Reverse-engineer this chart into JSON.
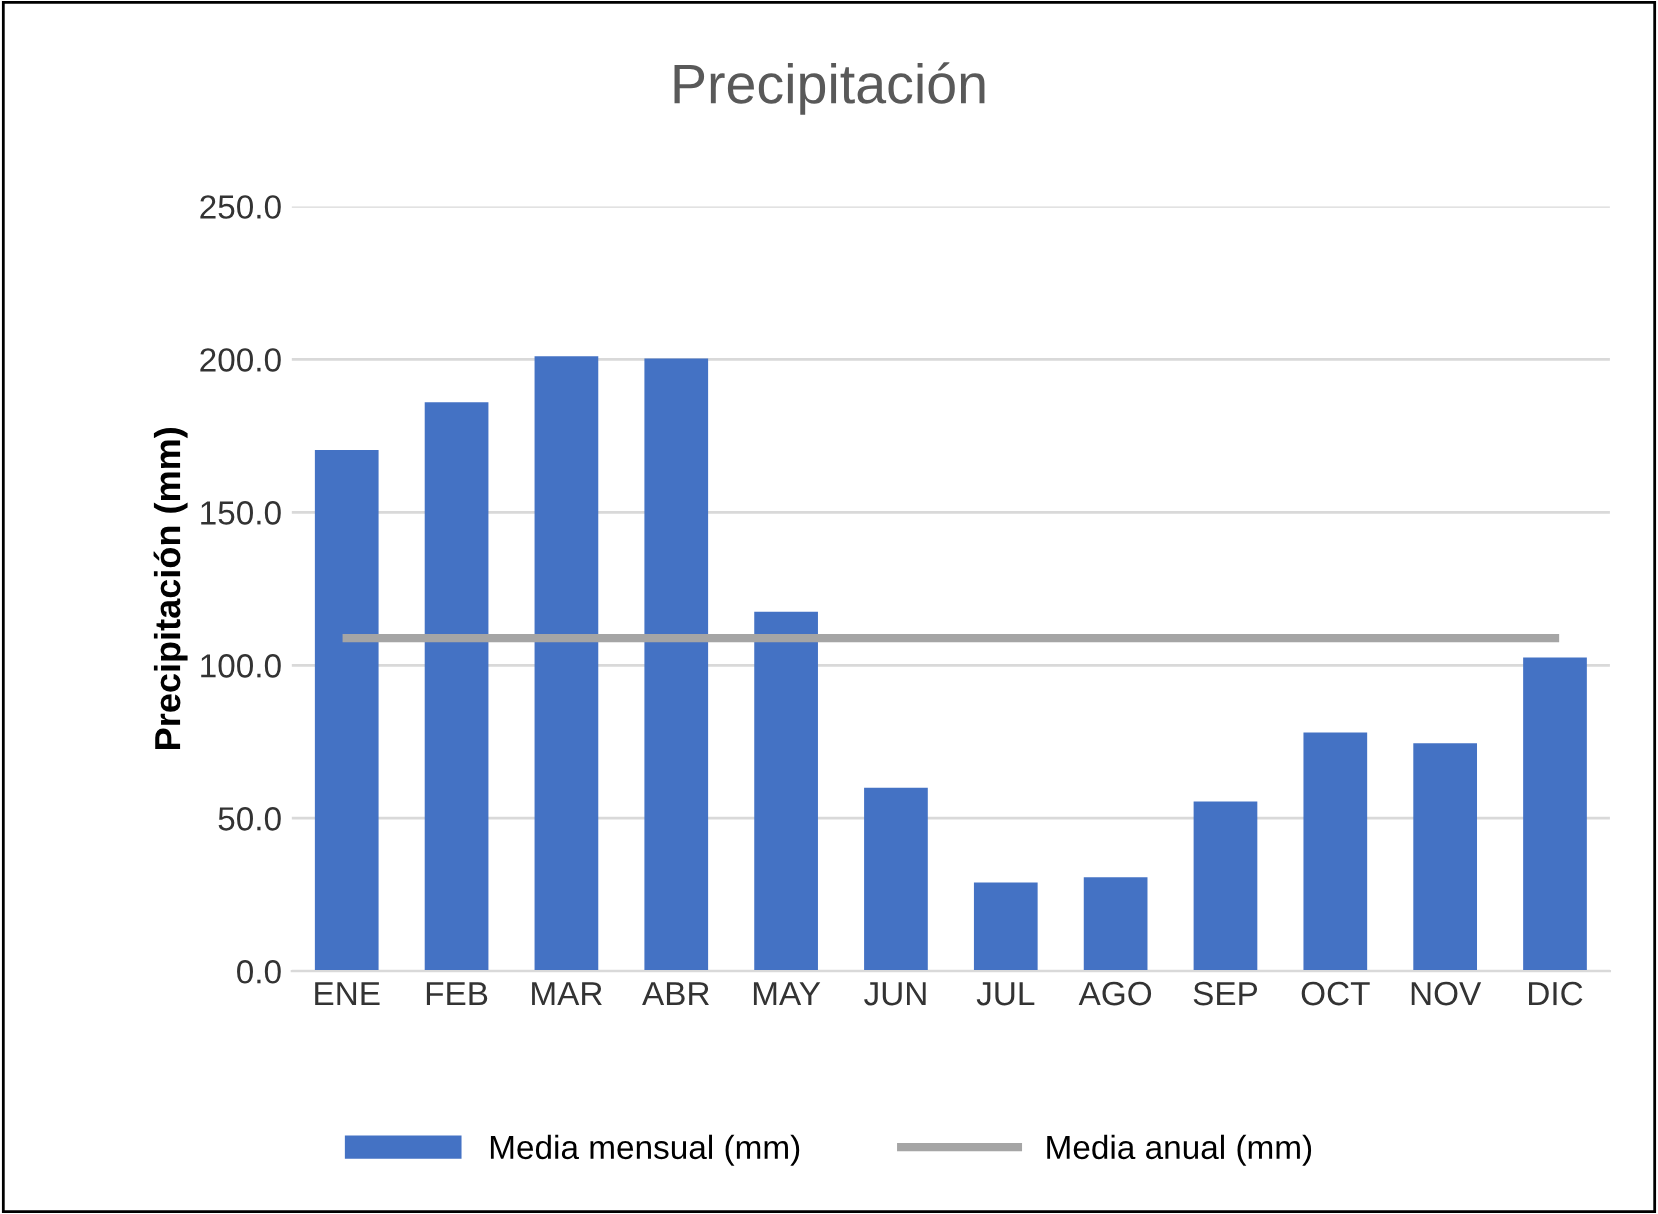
{
  "chart_data": {
    "type": "bar",
    "title": "Precipitación",
    "ylabel": "Precipitación (mm)",
    "categories": [
      "ENE",
      "FEB",
      "MAR",
      "ABR",
      "MAY",
      "JUN",
      "JUL",
      "AGO",
      "SEP",
      "OCT",
      "NOV",
      "DIC"
    ],
    "series": [
      {
        "name": "Media mensual (mm)",
        "color": "#4472c4",
        "values": [
          170.4,
          186.0,
          201.0,
          200.3,
          117.5,
          60.0,
          29.0,
          30.7,
          55.5,
          78.0,
          74.5,
          102.5
        ]
      },
      {
        "name": "Media anual (mm)",
        "type": "line",
        "color": "#a5a5a5",
        "values": [
          108.9,
          108.9,
          108.9,
          108.9,
          108.9,
          108.9,
          108.9,
          108.9,
          108.9,
          108.9,
          108.9,
          108.9
        ]
      }
    ],
    "ylim": [
      0,
      250
    ],
    "yticks": [
      {
        "value": 0,
        "label": "0.0"
      },
      {
        "value": 50,
        "label": "50.0"
      },
      {
        "value": 100,
        "label": "100.0"
      },
      {
        "value": 150,
        "label": "150.0"
      },
      {
        "value": 200,
        "label": "200.0"
      },
      {
        "value": 250,
        "label": "250.0"
      }
    ],
    "grid": "y",
    "legend": "bottom",
    "marker": "none"
  }
}
